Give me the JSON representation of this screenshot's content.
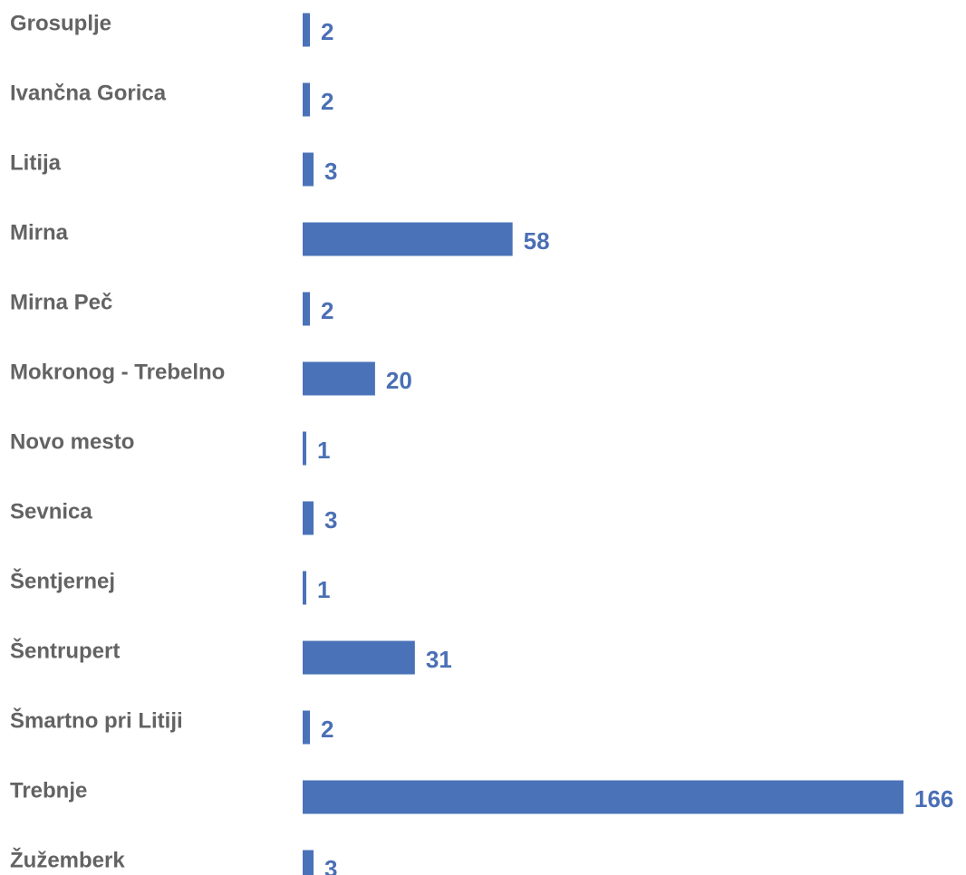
{
  "chart_data": {
    "type": "bar",
    "orientation": "horizontal",
    "categories": [
      "Grosuplje",
      "Ivančna Gorica",
      "Litija",
      "Mirna",
      "Mirna Peč",
      "Mokronog - Trebelno",
      "Novo mesto",
      "Sevnica",
      "Šentjernej",
      "Šentrupert",
      "Šmartno pri Litiji",
      "Trebnje",
      "Žužemberk"
    ],
    "values": [
      2,
      2,
      3,
      58,
      2,
      20,
      1,
      3,
      1,
      31,
      2,
      166,
      3
    ],
    "title": "",
    "xlabel": "",
    "ylabel": "",
    "xlim": [
      0,
      166
    ],
    "grid": false,
    "legend": "none",
    "data_labels": true,
    "colors": {
      "bar": "#4a72b8",
      "value_label": "#4a6fb5",
      "category_label": "#636363"
    }
  }
}
